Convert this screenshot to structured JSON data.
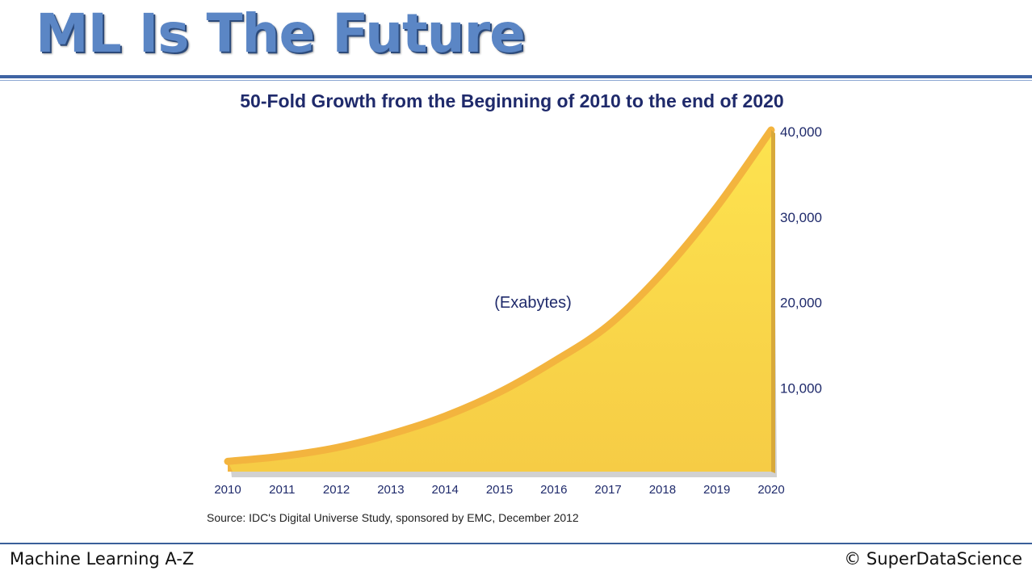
{
  "slide": {
    "title": "ML Is The Future",
    "footer_left": "Machine Learning A-Z",
    "footer_right": "© SuperDataScience"
  },
  "chart_data": {
    "type": "area",
    "title": "50-Fold Growth from the Beginning of 2010 to the end of 2020",
    "annotation": "(Exabytes)",
    "source": "Source: IDC's Digital Universe Study, sponsored by EMC, December 2012",
    "categories": [
      "2010",
      "2011",
      "2012",
      "2013",
      "2014",
      "2015",
      "2016",
      "2017",
      "2018",
      "2019",
      "2020"
    ],
    "series": [
      {
        "values": [
          1200,
          1800,
          2800,
          4400,
          6500,
          9300,
          12900,
          17100,
          23300,
          31000,
          40000
        ]
      }
    ],
    "y_ticks": [
      "10,000",
      "20,000",
      "30,000",
      "40,000"
    ],
    "y_tick_values": [
      10000,
      20000,
      30000,
      40000
    ],
    "ylim": [
      0,
      40000
    ],
    "y_axis_side": "right",
    "grid": false,
    "colors": {
      "fill": "#f9d648",
      "edge": "#f3b43e",
      "text": "#1f2a6b"
    }
  }
}
